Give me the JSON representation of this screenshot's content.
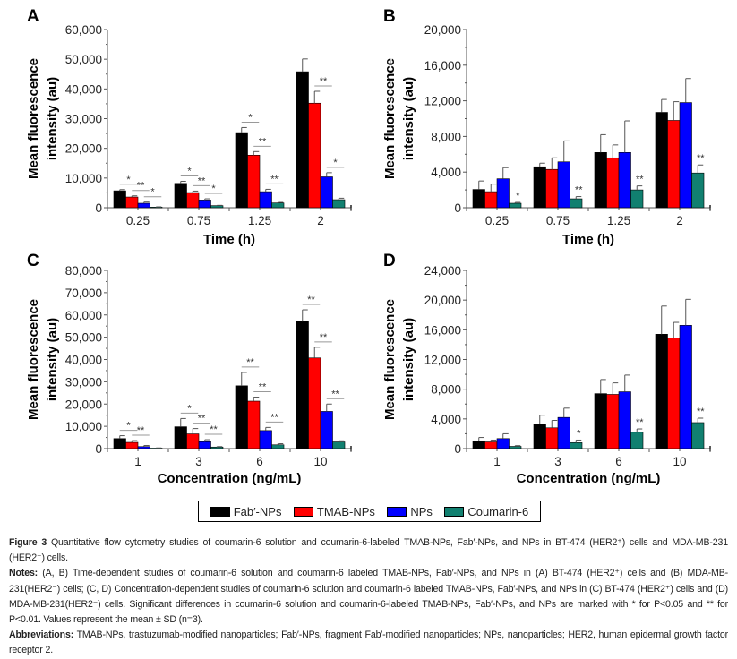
{
  "figure_label": "Figure 3",
  "colors": {
    "fab": "#000000",
    "tmab": "#ff0000",
    "nps": "#0000ff",
    "coumarin": "#118070",
    "axis": "#555555",
    "sig_line": "#999999",
    "error_bar": "#555555"
  },
  "legend": {
    "items": [
      {
        "label": "Fab′-NPs",
        "color": "#000000"
      },
      {
        "label": "TMAB-NPs",
        "color": "#ff0000"
      },
      {
        "label": "NPs",
        "color": "#0000ff"
      },
      {
        "label": "Coumarin-6",
        "color": "#118070"
      }
    ]
  },
  "chart_data": [
    {
      "panel": "A",
      "type": "bar",
      "title": "",
      "xlabel": "Time (h)",
      "ylabel": "Mean fluorescence intensity (au)",
      "ylim": [
        0,
        60000
      ],
      "yticks": [
        0,
        10000,
        20000,
        30000,
        40000,
        50000,
        60000
      ],
      "ytick_labels": [
        "0",
        "10,000",
        "20,000",
        "30,000",
        "40,000",
        "50,000",
        "60,000"
      ],
      "categories": [
        "0.25",
        "0.75",
        "1.25",
        "2"
      ],
      "series": [
        {
          "name": "Fab′-NPs",
          "values": [
            5700,
            8200,
            25300,
            45800
          ],
          "errors": [
            400,
            700,
            1700,
            4300
          ]
        },
        {
          "name": "TMAB-NPs",
          "values": [
            3600,
            5100,
            17700,
            35200
          ],
          "errors": [
            400,
            500,
            1200,
            4000
          ]
        },
        {
          "name": "NPs",
          "values": [
            1500,
            2600,
            5400,
            10400
          ],
          "errors": [
            400,
            400,
            800,
            1400
          ]
        },
        {
          "name": "Coumarin-6",
          "values": [
            200,
            700,
            1600,
            2700
          ],
          "errors": [
            100,
            100,
            200,
            500
          ]
        }
      ],
      "significance": [
        {
          "group": 0,
          "from": 0,
          "to": 1,
          "label": "*"
        },
        {
          "group": 0,
          "from": 1,
          "to": 2,
          "label": "**"
        },
        {
          "group": 0,
          "from": 2,
          "to": 3,
          "label": "*"
        },
        {
          "group": 1,
          "from": 0,
          "to": 1,
          "label": "*"
        },
        {
          "group": 1,
          "from": 1,
          "to": 2,
          "label": "**"
        },
        {
          "group": 1,
          "from": 2,
          "to": 3,
          "label": "*"
        },
        {
          "group": 2,
          "from": 0,
          "to": 1,
          "label": "*"
        },
        {
          "group": 2,
          "from": 1,
          "to": 2,
          "label": "**"
        },
        {
          "group": 2,
          "from": 2,
          "to": 3,
          "label": "**"
        },
        {
          "group": 3,
          "from": 1,
          "to": 2,
          "label": "**"
        },
        {
          "group": 3,
          "from": 2,
          "to": 3,
          "label": "*"
        }
      ]
    },
    {
      "panel": "B",
      "type": "bar",
      "title": "",
      "xlabel": "Time (h)",
      "ylabel": "Mean fluorescence intensity (au)",
      "ylim": [
        0,
        20000
      ],
      "yticks": [
        0,
        4000,
        8000,
        12000,
        16000,
        20000
      ],
      "ytick_labels": [
        "0",
        "4,000",
        "8,000",
        "12,000",
        "16,000",
        "20,000"
      ],
      "categories": [
        "0.25",
        "0.75",
        "1.25",
        "2"
      ],
      "series": [
        {
          "name": "Fab′-NPs",
          "values": [
            2050,
            4600,
            6200,
            10700
          ],
          "errors": [
            950,
            400,
            2000,
            1450
          ]
        },
        {
          "name": "TMAB-NPs",
          "values": [
            1800,
            4300,
            5600,
            9800
          ],
          "errors": [
            850,
            1300,
            1450,
            2100
          ]
        },
        {
          "name": "NPs",
          "values": [
            3250,
            5150,
            6200,
            11800
          ],
          "errors": [
            1250,
            2350,
            3550,
            2700
          ]
        },
        {
          "name": "Coumarin-6",
          "values": [
            500,
            1000,
            2000,
            3900
          ],
          "errors": [
            100,
            250,
            450,
            900
          ]
        }
      ],
      "significance": [
        {
          "group": 0,
          "bar": 3,
          "label": "*"
        },
        {
          "group": 1,
          "bar": 3,
          "label": "**"
        },
        {
          "group": 2,
          "bar": 3,
          "label": "**"
        },
        {
          "group": 3,
          "bar": 3,
          "label": "**"
        }
      ]
    },
    {
      "panel": "C",
      "type": "bar",
      "title": "",
      "xlabel": "Concentration (ng/mL)",
      "ylabel": "Mean fluorescence intensity (au)",
      "ylim": [
        0,
        80000
      ],
      "yticks": [
        0,
        10000,
        20000,
        30000,
        40000,
        50000,
        60000,
        70000,
        80000
      ],
      "ytick_labels": [
        "0",
        "10,000",
        "20,000",
        "30,000",
        "40,000",
        "50,000",
        "60,000",
        "70,000",
        "80,000"
      ],
      "categories": [
        "1",
        "3",
        "6",
        "10"
      ],
      "series": [
        {
          "name": "Fab′-NPs",
          "values": [
            4500,
            9800,
            28200,
            57000
          ],
          "errors": [
            1300,
            3700,
            6000,
            5300
          ]
        },
        {
          "name": "TMAB-NPs",
          "values": [
            2800,
            6600,
            21300,
            40700
          ],
          "errors": [
            800,
            2400,
            1800,
            4800
          ]
        },
        {
          "name": "NPs",
          "values": [
            900,
            3100,
            8100,
            16700
          ],
          "errors": [
            500,
            900,
            1400,
            3300
          ]
        },
        {
          "name": "Coumarin-6",
          "values": [
            200,
            700,
            1700,
            3000
          ],
          "errors": [
            100,
            200,
            500,
            500
          ]
        }
      ],
      "significance": [
        {
          "group": 0,
          "from": 0,
          "to": 1,
          "label": "*"
        },
        {
          "group": 0,
          "from": 1,
          "to": 2,
          "label": "**"
        },
        {
          "group": 1,
          "from": 0,
          "to": 1,
          "label": "*"
        },
        {
          "group": 1,
          "from": 1,
          "to": 2,
          "label": "**"
        },
        {
          "group": 1,
          "from": 2,
          "to": 3,
          "label": "**"
        },
        {
          "group": 2,
          "from": 0,
          "to": 1,
          "label": "**"
        },
        {
          "group": 2,
          "from": 1,
          "to": 2,
          "label": "**"
        },
        {
          "group": 2,
          "from": 2,
          "to": 3,
          "label": "**"
        },
        {
          "group": 3,
          "from": 0,
          "to": 1,
          "label": "**"
        },
        {
          "group": 3,
          "from": 1,
          "to": 2,
          "label": "**"
        },
        {
          "group": 3,
          "from": 2,
          "to": 3,
          "label": "**"
        }
      ]
    },
    {
      "panel": "D",
      "type": "bar",
      "title": "",
      "xlabel": "Concentration (ng/mL)",
      "ylabel": "Mean fluorescence intensity (au)",
      "ylim": [
        0,
        24000
      ],
      "yticks": [
        0,
        4000,
        8000,
        12000,
        16000,
        20000,
        24000
      ],
      "ytick_labels": [
        "0",
        "4,000",
        "8,000",
        "12,000",
        "16,000",
        "20,000",
        "24,000"
      ],
      "categories": [
        "1",
        "3",
        "6",
        "10"
      ],
      "series": [
        {
          "name": "Fab′-NPs",
          "values": [
            1050,
            3300,
            7400,
            15400
          ],
          "errors": [
            450,
            1200,
            1900,
            3800
          ]
        },
        {
          "name": "TMAB-NPs",
          "values": [
            900,
            2800,
            7300,
            14900
          ],
          "errors": [
            250,
            1000,
            1550,
            2100
          ]
        },
        {
          "name": "NPs",
          "values": [
            1350,
            4200,
            7650,
            16600
          ],
          "errors": [
            650,
            1250,
            2250,
            3500
          ]
        },
        {
          "name": "Coumarin-6",
          "values": [
            300,
            800,
            2200,
            3500
          ],
          "errors": [
            100,
            350,
            450,
            600
          ]
        }
      ],
      "significance": [
        {
          "group": 1,
          "bar": 3,
          "label": "*"
        },
        {
          "group": 2,
          "bar": 3,
          "label": "**"
        },
        {
          "group": 3,
          "bar": 3,
          "label": "**"
        }
      ]
    }
  ],
  "caption": {
    "figure_title": "Figure 3",
    "title_text": " Quantitative flow cytometry studies of coumarin-6 solution and coumarin-6-labeled TMAB-NPs, Fab′-NPs, and NPs in BT-474 (HER2⁺) cells and MDA-MB-231 (HER2⁻) cells.",
    "notes_label": "Notes:",
    "notes_text": " (A, B) Time-dependent studies of coumarin-6 solution and coumarin-6 labeled TMAB-NPs, Fab′-NPs, and NPs in (A) BT-474 (HER2⁺) cells and (B) MDA-MB-231(HER2⁻) cells; (C, D) Concentration-dependent studies of coumarin-6 solution and coumarin-6 labeled TMAB-NPs, Fab′-NPs, and NPs in (C) BT-474 (HER2⁺) cells and (D) MDA-MB-231(HER2⁻) cells. Significant differences in coumarin-6 solution and coumarin-6-labeled TMAB-NPs, Fab′-NPs, and NPs are marked with * for P<0.05 and ** for P<0.01. Values represent the mean ± SD (n=3).",
    "abbreviations_label": "Abbreviations:",
    "abbreviations_text": " TMAB-NPs, trastuzumab-modified nanoparticles; Fab′-NPs, fragment Fab′-modified nanoparticles; NPs, nanoparticles; HER2, human epidermal growth factor receptor 2."
  }
}
